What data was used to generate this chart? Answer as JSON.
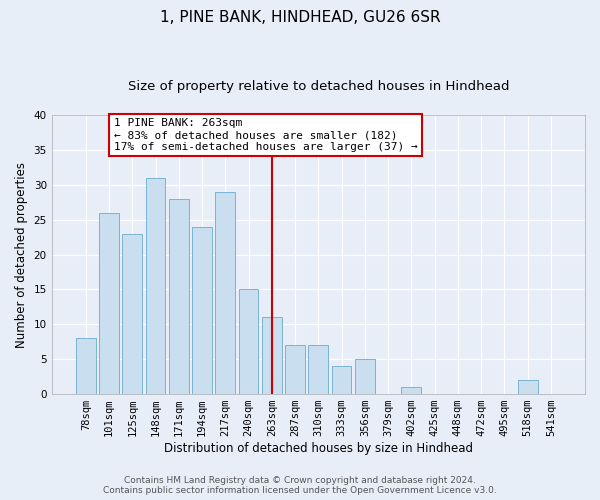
{
  "title": "1, PINE BANK, HINDHEAD, GU26 6SR",
  "subtitle": "Size of property relative to detached houses in Hindhead",
  "xlabel": "Distribution of detached houses by size in Hindhead",
  "ylabel": "Number of detached properties",
  "categories": [
    "78sqm",
    "101sqm",
    "125sqm",
    "148sqm",
    "171sqm",
    "194sqm",
    "217sqm",
    "240sqm",
    "263sqm",
    "287sqm",
    "310sqm",
    "333sqm",
    "356sqm",
    "379sqm",
    "402sqm",
    "425sqm",
    "448sqm",
    "472sqm",
    "495sqm",
    "518sqm",
    "541sqm"
  ],
  "values": [
    8,
    26,
    23,
    31,
    28,
    24,
    29,
    15,
    11,
    7,
    7,
    4,
    5,
    0,
    1,
    0,
    0,
    0,
    0,
    2,
    0
  ],
  "bar_color": "#c9dff0",
  "bar_edge_color": "#7ab3d4",
  "highlight_index": 8,
  "highlight_line_color": "#cc0000",
  "ylim": [
    0,
    40
  ],
  "yticks": [
    0,
    5,
    10,
    15,
    20,
    25,
    30,
    35,
    40
  ],
  "annotation_text": "1 PINE BANK: 263sqm\n← 83% of detached houses are smaller (182)\n17% of semi-detached houses are larger (37) →",
  "annotation_box_color": "#ffffff",
  "annotation_box_edge_color": "#cc0000",
  "footer_line1": "Contains HM Land Registry data © Crown copyright and database right 2024.",
  "footer_line2": "Contains public sector information licensed under the Open Government Licence v3.0.",
  "background_color": "#e8eef8",
  "plot_bg_color": "#e8eef8",
  "grid_color": "#ffffff",
  "title_fontsize": 11,
  "subtitle_fontsize": 9.5,
  "axis_label_fontsize": 8.5,
  "tick_fontsize": 7.5,
  "annotation_fontsize": 8,
  "footer_fontsize": 6.5
}
